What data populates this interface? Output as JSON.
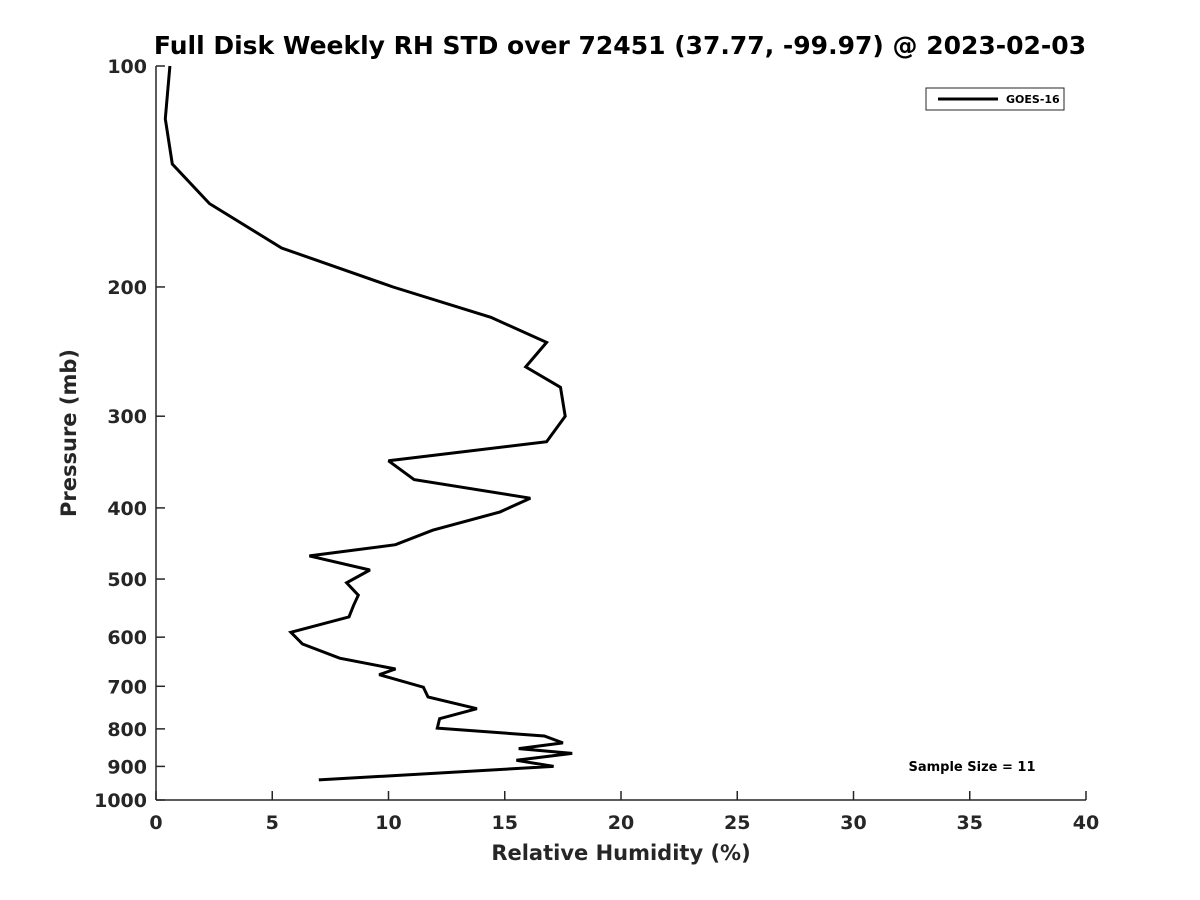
{
  "chart_data": {
    "type": "line",
    "title": "Full Disk Weekly RH STD over 72451 (37.77, -99.97) @ 2023-02-03",
    "xlabel": "Relative Humidity (%)",
    "ylabel": "Pressure (mb)",
    "xlim": [
      0,
      40
    ],
    "ylim": [
      100,
      1000
    ],
    "yscale": "log",
    "y_reversed": true,
    "x_ticks": [
      0,
      5,
      10,
      15,
      20,
      25,
      30,
      35,
      40
    ],
    "y_ticks": [
      100,
      200,
      300,
      400,
      500,
      600,
      700,
      800,
      900,
      1000
    ],
    "legend": [
      "GOES-16"
    ],
    "legend_position": "top-right",
    "annotation": "Sample Size = 11",
    "series": [
      {
        "name": "GOES-16",
        "color": "#000000",
        "points": [
          [
            0.6,
            100
          ],
          [
            0.4,
            118
          ],
          [
            0.7,
            136
          ],
          [
            2.3,
            154
          ],
          [
            5.4,
            177
          ],
          [
            10.2,
            200
          ],
          [
            14.4,
            220
          ],
          [
            16.8,
            238
          ],
          [
            15.9,
            257
          ],
          [
            17.4,
            274
          ],
          [
            17.6,
            300
          ],
          [
            16.8,
            325
          ],
          [
            10.0,
            345
          ],
          [
            11.1,
            366
          ],
          [
            16.1,
            388
          ],
          [
            14.8,
            405
          ],
          [
            11.9,
            429
          ],
          [
            10.3,
            449
          ],
          [
            6.6,
            465
          ],
          [
            9.2,
            486
          ],
          [
            8.2,
            506
          ],
          [
            8.7,
            526
          ],
          [
            8.5,
            543
          ],
          [
            8.3,
            563
          ],
          [
            5.8,
            591
          ],
          [
            6.3,
            613
          ],
          [
            7.9,
            641
          ],
          [
            10.3,
            663
          ],
          [
            9.6,
            675
          ],
          [
            11.5,
            702
          ],
          [
            11.7,
            724
          ],
          [
            13.8,
            751
          ],
          [
            12.2,
            775
          ],
          [
            12.1,
            798
          ],
          [
            16.7,
            818
          ],
          [
            17.5,
            836
          ],
          [
            15.6,
            851
          ],
          [
            17.9,
            864
          ],
          [
            15.5,
            883
          ],
          [
            17.1,
            900
          ],
          [
            7.0,
            939
          ]
        ]
      }
    ]
  }
}
